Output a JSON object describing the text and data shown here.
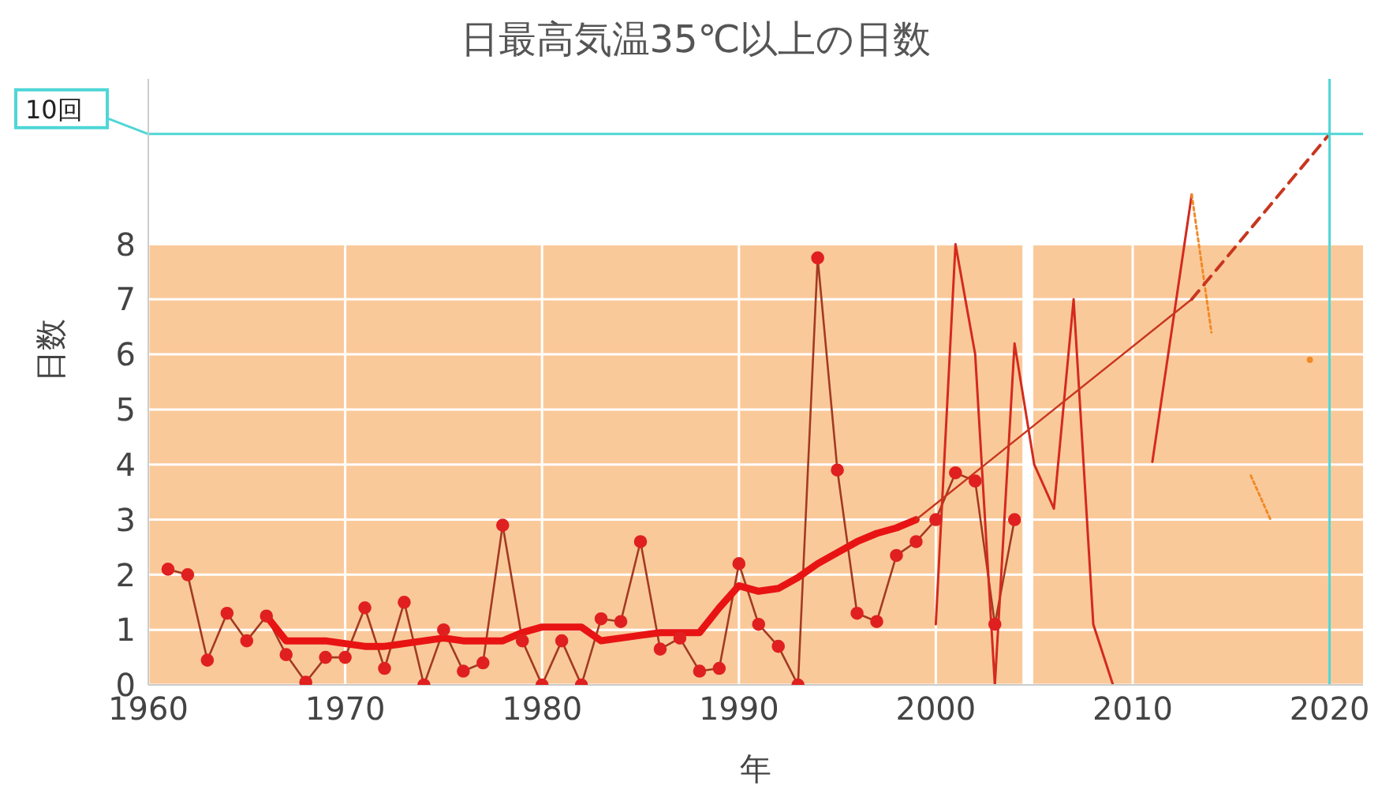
{
  "chart_data": {
    "type": "line",
    "title": "日最高気温35℃以上の日数",
    "xlabel": "年",
    "ylabel": "日数",
    "xlim": [
      1960,
      2021.7
    ],
    "xticks": [
      1960,
      1970,
      1980,
      1990,
      2000,
      2010,
      2020
    ],
    "ylim": [
      0,
      11
    ],
    "yticks": [
      0,
      1,
      2,
      3,
      4,
      5,
      6,
      7,
      8
    ],
    "grid": true,
    "bands": [
      {
        "axis": "x",
        "from": 1960,
        "to": 2004.4,
        "color": "#fac99a"
      },
      {
        "axis": "x",
        "from": 2004.95,
        "to": 2021.7,
        "color": "#fac99a"
      }
    ],
    "ref_lines": [
      {
        "axis": "y",
        "value": 10,
        "label": "10回",
        "color": "#4fd6d6"
      },
      {
        "axis": "x",
        "value": 2020,
        "color": "#4fd6d6"
      }
    ],
    "series": [
      {
        "color": "#a33a22",
        "marker": "circle",
        "x": [
          1961,
          1962,
          1963,
          1964,
          1965,
          1966,
          1967,
          1968,
          1969,
          1970,
          1971,
          1972,
          1973,
          1974,
          1975,
          1976,
          1977,
          1978,
          1979,
          1980,
          1981,
          1982,
          1983,
          1984,
          1985,
          1986,
          1987,
          1988,
          1989,
          1990,
          1991,
          1992,
          1993,
          1994,
          1995,
          1996,
          1997,
          1998,
          1999,
          2000,
          2001,
          2002,
          2003,
          2004
        ],
        "values": [
          2.1,
          2.0,
          0.45,
          1.3,
          0.8,
          1.25,
          0.55,
          0.05,
          0.5,
          0.5,
          1.4,
          0.3,
          1.5,
          0,
          1.0,
          0.25,
          0.4,
          2.9,
          0.8,
          0,
          0.8,
          0,
          1.2,
          1.15,
          2.6,
          0.65,
          0.85,
          0.25,
          0.3,
          2.2,
          1.1,
          0.7,
          0,
          7.75,
          3.9,
          1.3,
          1.15,
          2.35,
          2.6,
          3.0,
          3.85,
          3.7,
          1.1,
          3.0
        ]
      },
      {
        "color": "#e81414",
        "marker": "none",
        "x": [
          1966,
          1967,
          1968,
          1969,
          1970,
          1971,
          1972,
          1973,
          1974,
          1975,
          1976,
          1977,
          1978,
          1979,
          1980,
          1981,
          1982,
          1983,
          1984,
          1985,
          1986,
          1987,
          1988,
          1989,
          1990,
          1991,
          1992,
          1993,
          1994,
          1995,
          1996,
          1997,
          1998,
          1999
        ],
        "values": [
          1.25,
          0.8,
          0.8,
          0.8,
          0.75,
          0.7,
          0.7,
          0.75,
          0.8,
          0.85,
          0.8,
          0.8,
          0.8,
          0.95,
          1.05,
          1.05,
          1.05,
          0.8,
          0.85,
          0.9,
          0.95,
          0.95,
          0.95,
          1.4,
          1.8,
          1.7,
          1.75,
          1.95,
          2.2,
          2.4,
          2.6,
          2.75,
          2.85,
          3.0
        ]
      },
      {
        "color": "#d42a1e",
        "marker": "none",
        "x": [
          2000,
          2001,
          2002,
          2003,
          2004,
          2005,
          2006,
          2007,
          2008,
          2009,
          2010,
          2011,
          2013
        ],
        "values": [
          1.1,
          8.0,
          6.0,
          0,
          6.2,
          4.0,
          3.2,
          7.0,
          1.1,
          0,
          null,
          4.05,
          8.9
        ]
      },
      {
        "color": "#f08a28",
        "marker": "none",
        "line_style": "dotted",
        "x": [
          2013,
          2014,
          2015,
          2016,
          2017,
          2018,
          2019
        ],
        "values": [
          8.9,
          6.4,
          null,
          3.8,
          3.0,
          null,
          5.9
        ]
      },
      {
        "color": "#c8361e",
        "marker": "none",
        "x": [
          1999,
          2013
        ],
        "values": [
          3.0,
          7.0
        ]
      },
      {
        "color": "#c8361e",
        "marker": "none",
        "line_style": "dashed",
        "x": [
          2013,
          2020
        ],
        "values": [
          7.0,
          10
        ]
      }
    ]
  }
}
